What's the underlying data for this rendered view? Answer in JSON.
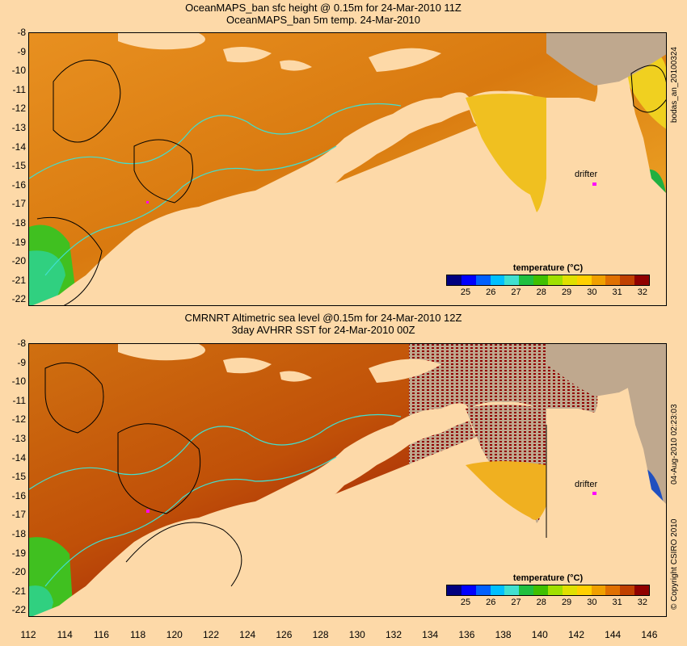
{
  "top_panel": {
    "title_line1": "OceanMAPS_ban sfc height @ 0.15m for 24-Mar-2010 11Z",
    "title_line2": "OceanMAPS_ban 5m temp. 24-Mar-2010",
    "side_label": "bodas_an_20100324",
    "drifter_label": "drifter"
  },
  "bottom_panel": {
    "title_line1": "CMRNRT Altimetric sea level  @0.15m  for 24-Mar-2010 12Z",
    "title_line2": "3day AVHRR SST for 24-Mar-2010 00Z",
    "side_label": "04-Aug-2010 02:23:03",
    "copyright": "© Copyright CSIRO 2010",
    "drifter_label": "drifter"
  },
  "legend": {
    "title": "temperature (°C)",
    "ticks": [
      "25",
      "26",
      "27",
      "28",
      "29",
      "30",
      "31",
      "32"
    ],
    "colors": [
      "#00007f",
      "#0000ff",
      "#0060ff",
      "#00c0ff",
      "#40e0d0",
      "#20c040",
      "#40c000",
      "#a0e000",
      "#e0e000",
      "#ffd000",
      "#f0a000",
      "#e07000",
      "#c04000",
      "#900000"
    ]
  },
  "map": {
    "lat_ticks": [
      "-8",
      "-9",
      "-10",
      "-11",
      "-12",
      "-13",
      "-14",
      "-15",
      "-16",
      "-17",
      "-18",
      "-19",
      "-20",
      "-21",
      "-22"
    ],
    "lon_ticks": [
      "112",
      "114",
      "116",
      "118",
      "120",
      "122",
      "124",
      "126",
      "128",
      "130",
      "132",
      "134",
      "136",
      "138",
      "140",
      "142",
      "144",
      "146"
    ],
    "lat_range": [
      -22.3,
      -8
    ],
    "lon_range": [
      112,
      147
    ],
    "colors": {
      "land": "#fdd9a8",
      "shelf_contour": "#40e0d0",
      "sea_level_contour": "#000000",
      "drifter": "#ff00ff",
      "gulf_ocean": "#ffd000"
    }
  }
}
